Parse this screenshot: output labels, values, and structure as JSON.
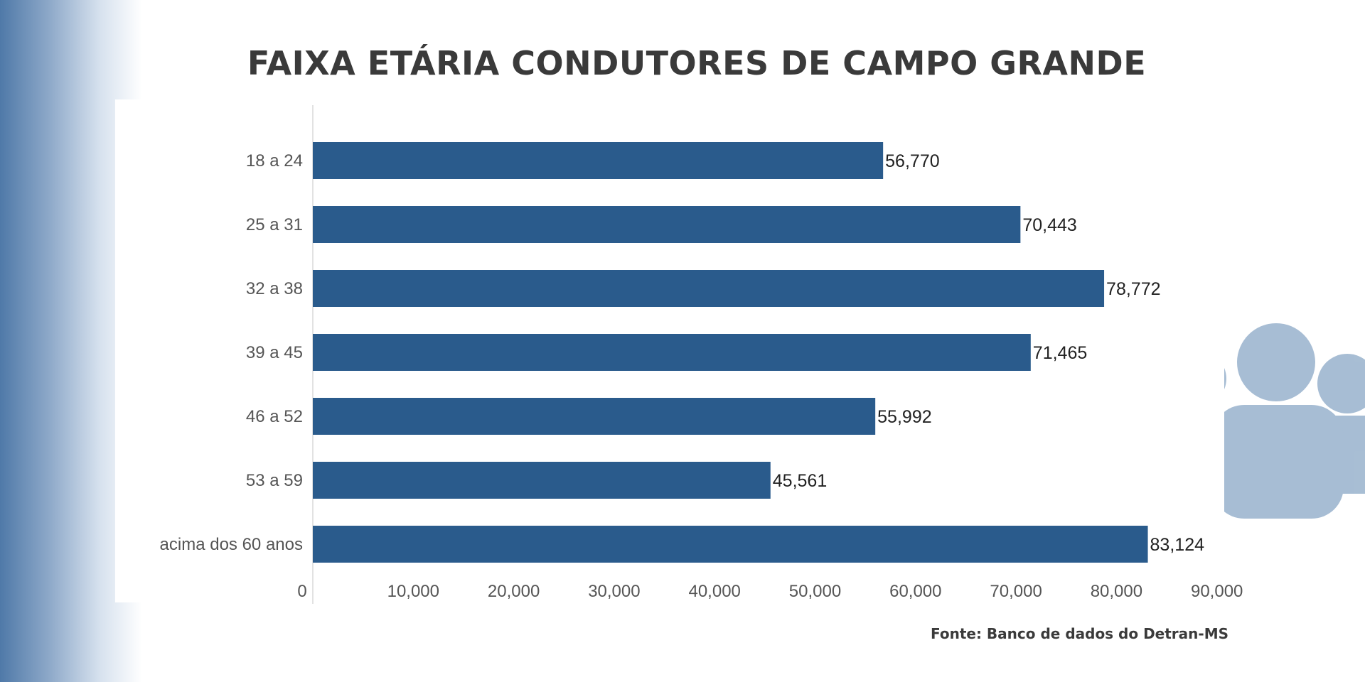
{
  "title": "FAIXA ETÁRIA CONDUTORES DE CAMPO GRANDE",
  "source": "Fonte: Banco de dados do Detran-MS",
  "colors": {
    "bar": "#2a5b8c",
    "people_icon": "#a3bad2",
    "left_gradient": "#4f79a8"
  },
  "chart_data": {
    "type": "bar",
    "orientation": "horizontal",
    "categories": [
      "18 a 24",
      "25 a 31",
      "32 a 38",
      "39 a 45",
      "46 a 52",
      "53 a 59",
      "acima dos 60 anos"
    ],
    "values": [
      56770,
      70443,
      78772,
      71465,
      55992,
      45561,
      83124
    ],
    "value_labels": [
      "56,770",
      "70,443",
      "78,772",
      "71,465",
      "55,992",
      "45,561",
      "83,124"
    ],
    "xlim": [
      0,
      90000
    ],
    "xticks": [
      0,
      10000,
      20000,
      30000,
      40000,
      50000,
      60000,
      70000,
      80000,
      90000
    ],
    "xtick_labels": [
      "0",
      "10,000",
      "20,000",
      "30,000",
      "40,000",
      "50,000",
      "60,000",
      "70,000",
      "80,000",
      "90,000"
    ],
    "xlabel": "",
    "ylabel": "",
    "grid": false,
    "legend": "none"
  }
}
